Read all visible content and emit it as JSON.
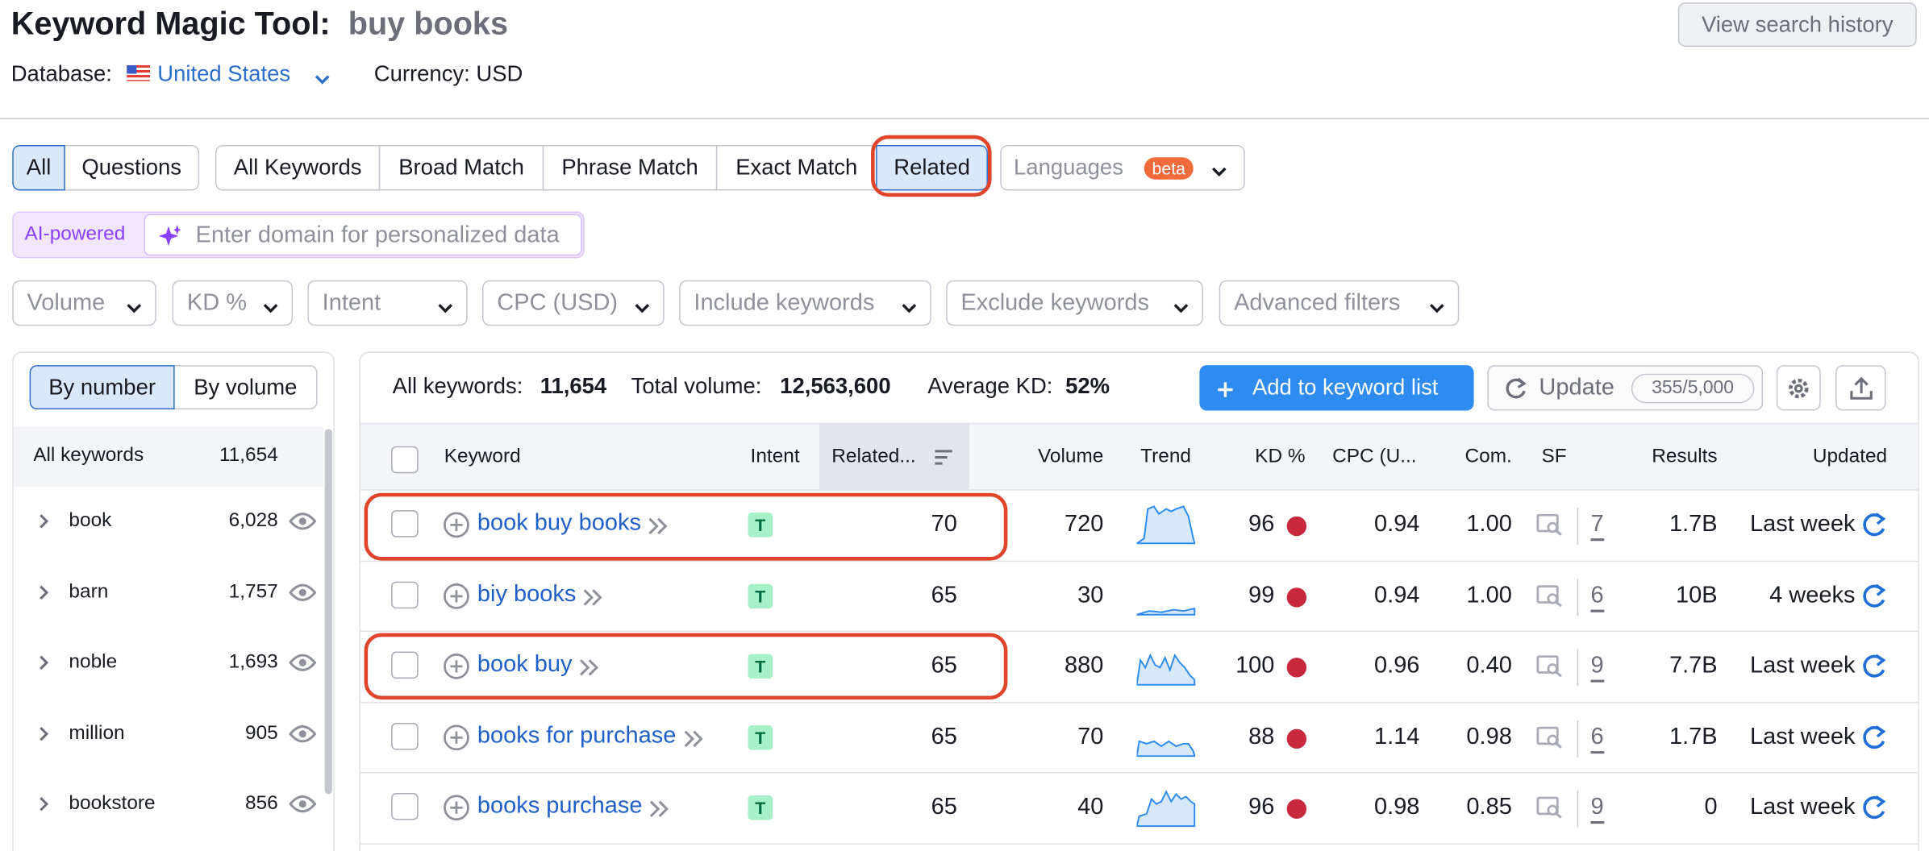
{
  "header": {
    "title": "Keyword Magic Tool:",
    "query": "buy books",
    "history_button": "View search history"
  },
  "database": {
    "label": "Database:",
    "value": "United States",
    "currency": "Currency: USD"
  },
  "tabs": {
    "match_type": [
      "All",
      "Questions"
    ],
    "keyword_type": [
      "All Keywords",
      "Broad Match",
      "Phrase Match",
      "Exact Match",
      "Related"
    ],
    "languages": "Languages",
    "badge": "beta"
  },
  "ai": {
    "label": "AI-powered",
    "placeholder": "Enter domain for personalized data"
  },
  "filters": [
    "Volume",
    "KD %",
    "Intent",
    "CPC (USD)",
    "Include keywords",
    "Exclude keywords",
    "Advanced filters"
  ],
  "sidebar": {
    "toggle": [
      "By number",
      "By volume"
    ],
    "all_label": "All keywords",
    "all_count": "11,654",
    "groups": [
      {
        "name": "book",
        "count": "6,028"
      },
      {
        "name": "barn",
        "count": "1,757"
      },
      {
        "name": "noble",
        "count": "1,693"
      },
      {
        "name": "million",
        "count": "905"
      },
      {
        "name": "bookstore",
        "count": "856"
      }
    ]
  },
  "summary": {
    "all_label": "All keywords:",
    "all_value": "11,654",
    "total_label": "Total volume:",
    "total_value": "12,563,600",
    "kd_label": "Average KD:",
    "kd_value": "52%",
    "add_button": "Add to keyword list",
    "update": "Update",
    "update_count": "355/5,000"
  },
  "table": {
    "columns": [
      "Keyword",
      "Intent",
      "Related...",
      "Volume",
      "Trend",
      "KD %",
      "CPC (U...",
      "Com.",
      "SF",
      "Results",
      "Updated"
    ],
    "rows": [
      {
        "keyword": "book buy books",
        "intent": "T",
        "related": "70",
        "volume": "720",
        "kd": "96",
        "cpc": "0.94",
        "com": "1.00",
        "sf": "7",
        "results": "1.7B",
        "updated": "Last week"
      },
      {
        "keyword": "biy books",
        "intent": "T",
        "related": "65",
        "volume": "30",
        "kd": "99",
        "cpc": "0.94",
        "com": "1.00",
        "sf": "6",
        "results": "10B",
        "updated": "4 weeks"
      },
      {
        "keyword": "book buy",
        "intent": "T",
        "related": "65",
        "volume": "880",
        "kd": "100",
        "cpc": "0.96",
        "com": "0.40",
        "sf": "9",
        "results": "7.7B",
        "updated": "Last week"
      },
      {
        "keyword": "books for purchase",
        "intent": "T",
        "related": "65",
        "volume": "70",
        "kd": "88",
        "cpc": "1.14",
        "com": "0.98",
        "sf": "6",
        "results": "1.7B",
        "updated": "Last week"
      },
      {
        "keyword": "books purchase",
        "intent": "T",
        "related": "65",
        "volume": "40",
        "kd": "96",
        "cpc": "0.98",
        "com": "0.85",
        "sf": "9",
        "results": "0",
        "updated": "Last week"
      }
    ]
  }
}
